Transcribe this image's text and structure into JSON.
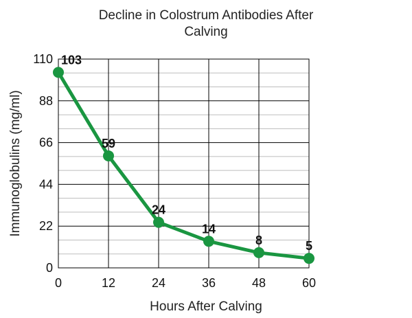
{
  "chart_data": {
    "type": "line",
    "title": [
      "Decline in Colostrum Antibodies After",
      "Calving"
    ],
    "xlabel": "Hours After Calving",
    "ylabel": "Immunoglobulins (mg/ml)",
    "x": [
      0,
      12,
      24,
      36,
      48,
      60
    ],
    "xticks": [
      "0",
      "12",
      "24",
      "36",
      "48",
      "60"
    ],
    "yticks": [
      "0",
      "22",
      "44",
      "66",
      "88",
      "110"
    ],
    "xlim": [
      0,
      60
    ],
    "ylim": [
      0,
      110
    ],
    "grid": true,
    "series": [
      {
        "values": [
          103,
          59,
          24,
          14,
          8,
          5
        ],
        "labels": [
          "103",
          "59",
          "24",
          "14",
          "8",
          "5"
        ],
        "color": "#1a9641"
      }
    ],
    "colors": {
      "line": "#1a9641",
      "grid_major": "#000000",
      "grid_minor": "#bdbdbd"
    }
  }
}
